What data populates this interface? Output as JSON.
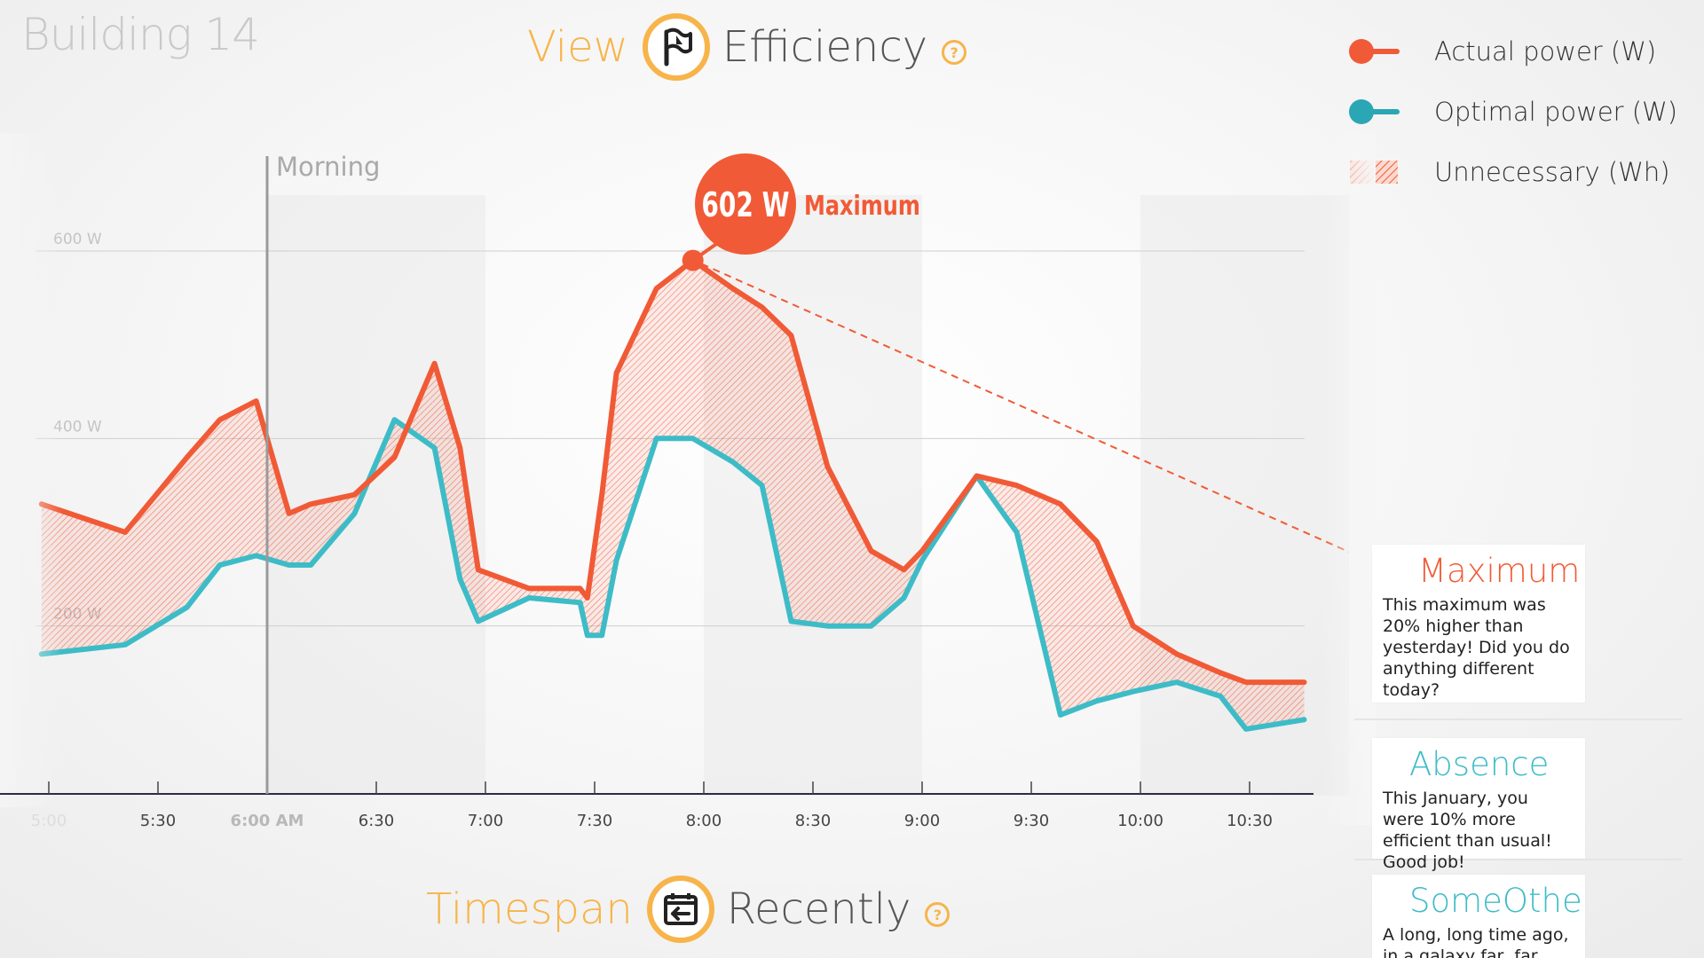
{
  "header": {
    "title": "Building 14"
  },
  "view_selector": {
    "key": "View",
    "value": "Efficiency",
    "help": "?"
  },
  "timespan_selector": {
    "key": "Timespan",
    "value": "Recently",
    "help": "?"
  },
  "colors": {
    "actual": "#f15a36",
    "optimal": "#3dbcc7",
    "accent": "#f7b44a"
  },
  "legend": [
    {
      "label": "Actual power (W)",
      "icon": "actual-power-swatch"
    },
    {
      "label": "Optimal power (W)",
      "icon": "optimal-power-swatch"
    },
    {
      "label": "Unnecessary (Wh)",
      "icon": "unnecessary-hatch-swatch"
    }
  ],
  "chart_data": {
    "type": "area",
    "xlabel": "",
    "ylabel": "",
    "x_tick_labels": [
      "5:00",
      "5:30",
      "6:00 AM",
      "6:30",
      "7:00",
      "7:30",
      "8:00",
      "8:30",
      "9:00",
      "9:30",
      "10:00",
      "10:30"
    ],
    "y_tick_labels": [
      "200 W",
      "400 W",
      "600 W"
    ],
    "ylim": [
      0,
      700
    ],
    "x": [
      "4:58",
      "5:21",
      "5:38",
      "5:47",
      "5:57",
      "6:06",
      "6:12",
      "6:24",
      "6:35",
      "6:46",
      "6:53",
      "6:58",
      "7:12",
      "7:26",
      "7:28",
      "7:32",
      "7:36",
      "7:47",
      "7:57",
      "8:08",
      "8:16",
      "8:24",
      "8:34",
      "8:46",
      "8:55",
      "9:00",
      "9:15",
      "9:26",
      "9:38",
      "9:48",
      "9:58",
      "10:10",
      "10:22",
      "10:29",
      "10:45"
    ],
    "series": [
      {
        "name": "Actual power (W)",
        "values": [
          330,
          300,
          380,
          420,
          440,
          320,
          330,
          340,
          380,
          480,
          390,
          260,
          240,
          240,
          230,
          340,
          470,
          560,
          590,
          560,
          540,
          510,
          370,
          280,
          260,
          280,
          360,
          350,
          330,
          290,
          200,
          170,
          150,
          140,
          140
        ]
      },
      {
        "name": "Optimal power (W)",
        "values": [
          170,
          180,
          220,
          265,
          275,
          265,
          265,
          320,
          420,
          390,
          250,
          205,
          230,
          225,
          190,
          190,
          270,
          400,
          400,
          375,
          350,
          205,
          200,
          200,
          230,
          270,
          360,
          300,
          105,
          120,
          130,
          140,
          125,
          90,
          100
        ]
      }
    ],
    "annotations": [
      {
        "text": "Morning",
        "x": "6:00"
      },
      {
        "value_label": "602 W",
        "text": "Maximum",
        "x": "7:57",
        "y": 602
      }
    ]
  },
  "insights": [
    {
      "title": "Maximum",
      "text": "This maximum was 20% higher than yesterday! Did you do anything different today?",
      "color": "#f15a36"
    },
    {
      "title": "Absence",
      "text": "This January, you were 10% more efficient than usual! Good job!",
      "color": "#3dbcc7"
    },
    {
      "title": "SomeOtherC",
      "text": "A long, long time ago, in a galaxy far, far away, it is a",
      "color": "#3dbcc7"
    }
  ]
}
